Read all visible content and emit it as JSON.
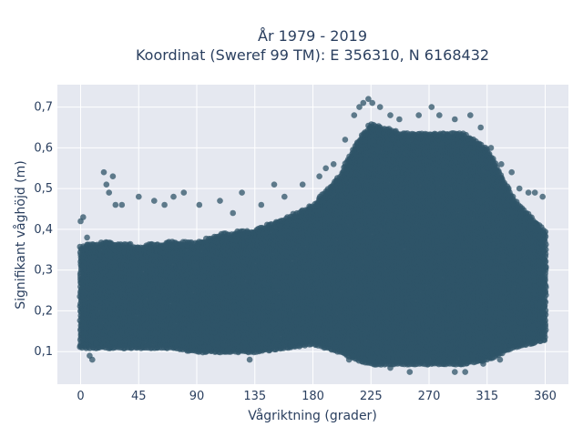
{
  "chart_data": {
    "type": "scatter",
    "title": [
      "År 1979 - 2019",
      "Koordinat (Sweref 99 TM): E 356310, N 6168432"
    ],
    "xlabel": "Vågriktning (grader)",
    "ylabel": "Signifikant våghöjd (m)",
    "xlim": [
      -18,
      378
    ],
    "ylim": [
      0.02,
      0.755
    ],
    "xticks": [
      0,
      45,
      90,
      135,
      180,
      225,
      270,
      315,
      360
    ],
    "xtick_labels": [
      "0",
      "45",
      "90",
      "135",
      "180",
      "225",
      "270",
      "315",
      "360"
    ],
    "yticks": [
      0.1,
      0.2,
      0.3,
      0.4,
      0.5,
      0.6,
      0.7
    ],
    "ytick_labels": [
      "0,1",
      "0,2",
      "0,3",
      "0,4",
      "0,5",
      "0,6",
      "0,7"
    ],
    "grid": true,
    "marker_color": "#2f5468",
    "plot_bg": "#e5e8f0",
    "envelope": {
      "x": [
        0,
        20,
        45,
        70,
        90,
        110,
        135,
        160,
        180,
        200,
        215,
        225,
        245,
        270,
        295,
        315,
        335,
        360
      ],
      "y_low": [
        0.11,
        0.11,
        0.11,
        0.11,
        0.1,
        0.1,
        0.1,
        0.11,
        0.12,
        0.1,
        0.08,
        0.07,
        0.07,
        0.07,
        0.07,
        0.08,
        0.11,
        0.13
      ],
      "y_high": [
        0.36,
        0.37,
        0.36,
        0.37,
        0.37,
        0.39,
        0.4,
        0.43,
        0.46,
        0.53,
        0.62,
        0.66,
        0.64,
        0.64,
        0.64,
        0.6,
        0.48,
        0.4
      ]
    },
    "sample_points": [
      {
        "x": 0,
        "y": 0.42
      },
      {
        "x": 2,
        "y": 0.43
      },
      {
        "x": 5,
        "y": 0.38
      },
      {
        "x": 7,
        "y": 0.09
      },
      {
        "x": 9,
        "y": 0.08
      },
      {
        "x": 18,
        "y": 0.54
      },
      {
        "x": 25,
        "y": 0.53
      },
      {
        "x": 20,
        "y": 0.51
      },
      {
        "x": 22,
        "y": 0.49
      },
      {
        "x": 27,
        "y": 0.46
      },
      {
        "x": 32,
        "y": 0.46
      },
      {
        "x": 45,
        "y": 0.48
      },
      {
        "x": 57,
        "y": 0.47
      },
      {
        "x": 65,
        "y": 0.46
      },
      {
        "x": 72,
        "y": 0.48
      },
      {
        "x": 80,
        "y": 0.49
      },
      {
        "x": 92,
        "y": 0.46
      },
      {
        "x": 108,
        "y": 0.47
      },
      {
        "x": 118,
        "y": 0.44
      },
      {
        "x": 125,
        "y": 0.49
      },
      {
        "x": 131,
        "y": 0.08
      },
      {
        "x": 140,
        "y": 0.46
      },
      {
        "x": 150,
        "y": 0.51
      },
      {
        "x": 158,
        "y": 0.48
      },
      {
        "x": 172,
        "y": 0.51
      },
      {
        "x": 185,
        "y": 0.53
      },
      {
        "x": 190,
        "y": 0.55
      },
      {
        "x": 196,
        "y": 0.56
      },
      {
        "x": 205,
        "y": 0.62
      },
      {
        "x": 212,
        "y": 0.68
      },
      {
        "x": 216,
        "y": 0.7
      },
      {
        "x": 219,
        "y": 0.71
      },
      {
        "x": 223,
        "y": 0.72
      },
      {
        "x": 226,
        "y": 0.71
      },
      {
        "x": 232,
        "y": 0.7
      },
      {
        "x": 240,
        "y": 0.68
      },
      {
        "x": 247,
        "y": 0.67
      },
      {
        "x": 262,
        "y": 0.68
      },
      {
        "x": 272,
        "y": 0.7
      },
      {
        "x": 278,
        "y": 0.68
      },
      {
        "x": 290,
        "y": 0.67
      },
      {
        "x": 302,
        "y": 0.68
      },
      {
        "x": 310,
        "y": 0.65
      },
      {
        "x": 318,
        "y": 0.6
      },
      {
        "x": 326,
        "y": 0.56
      },
      {
        "x": 334,
        "y": 0.54
      },
      {
        "x": 340,
        "y": 0.5
      },
      {
        "x": 347,
        "y": 0.49
      },
      {
        "x": 352,
        "y": 0.49
      },
      {
        "x": 358,
        "y": 0.48
      },
      {
        "x": 255,
        "y": 0.05
      },
      {
        "x": 290,
        "y": 0.05
      },
      {
        "x": 298,
        "y": 0.05
      },
      {
        "x": 240,
        "y": 0.06
      },
      {
        "x": 312,
        "y": 0.07
      },
      {
        "x": 325,
        "y": 0.08
      },
      {
        "x": 220,
        "y": 0.08
      },
      {
        "x": 208,
        "y": 0.08
      },
      {
        "x": 350,
        "y": 0.12
      },
      {
        "x": 12,
        "y": 0.12
      }
    ]
  }
}
